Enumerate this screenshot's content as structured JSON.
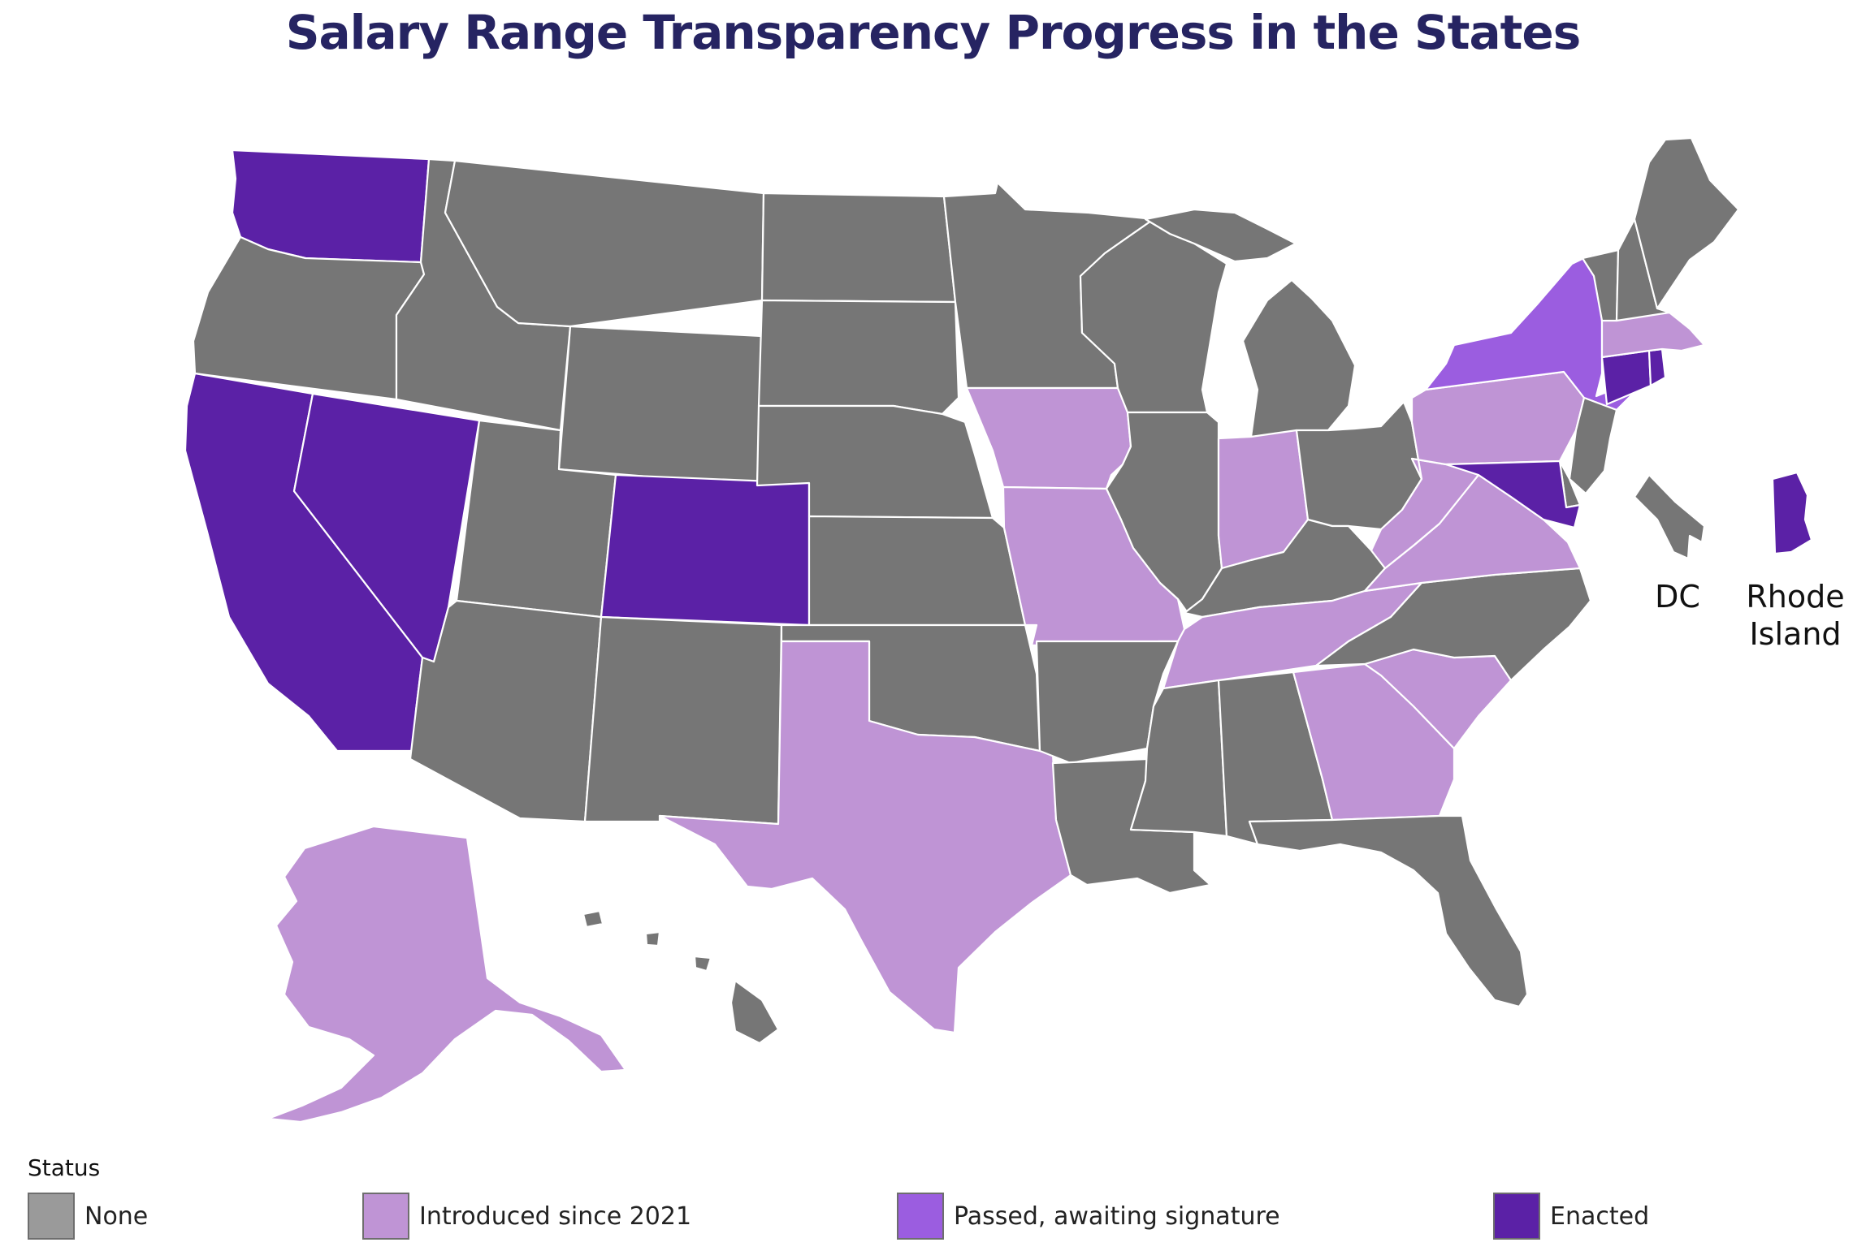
{
  "title": "Salary Range Transparency Progress in the States",
  "colors": {
    "none": "#767676",
    "introduced": "#bf94d5",
    "passed": "#9b5de0",
    "enacted": "#5b21a6"
  },
  "legend": {
    "heading": "Status",
    "items": [
      {
        "label": "None",
        "swatch_color": "#9a9a9a"
      },
      {
        "label": "Introduced since 2021",
        "swatch_color": "#bf94d5"
      },
      {
        "label": "Passed, awaiting signature",
        "swatch_color": "#9b5de0"
      },
      {
        "label": "Enacted",
        "swatch_color": "#5b21a6"
      }
    ]
  },
  "insets": {
    "dc_label": "DC",
    "ri_label": "Rhode Island"
  },
  "states": {
    "WA": "enacted",
    "OR": "none",
    "CA": "enacted",
    "NV": "enacted",
    "ID": "none",
    "MT": "none",
    "WY": "none",
    "UT": "none",
    "AZ": "none",
    "CO": "enacted",
    "NM": "none",
    "ND": "none",
    "SD": "none",
    "NE": "none",
    "KS": "none",
    "OK": "none",
    "TX": "introduced",
    "MN": "none",
    "IA": "introduced",
    "MO": "introduced",
    "AR": "none",
    "LA": "none",
    "WI": "none",
    "IL": "none",
    "MI": "none",
    "IN": "introduced",
    "OH": "none",
    "KY": "none",
    "TN": "introduced",
    "MS": "none",
    "AL": "none",
    "GA": "introduced",
    "FL": "none",
    "SC": "introduced",
    "NC": "none",
    "VA": "introduced",
    "WV": "introduced",
    "PA": "introduced",
    "NY": "passed",
    "NJ": "none",
    "DE": "none",
    "MD": "enacted",
    "CT": "enacted",
    "RI": "enacted",
    "MA": "introduced",
    "VT": "none",
    "NH": "none",
    "ME": "none",
    "AK": "introduced",
    "HI": "none",
    "DC": "none"
  }
}
